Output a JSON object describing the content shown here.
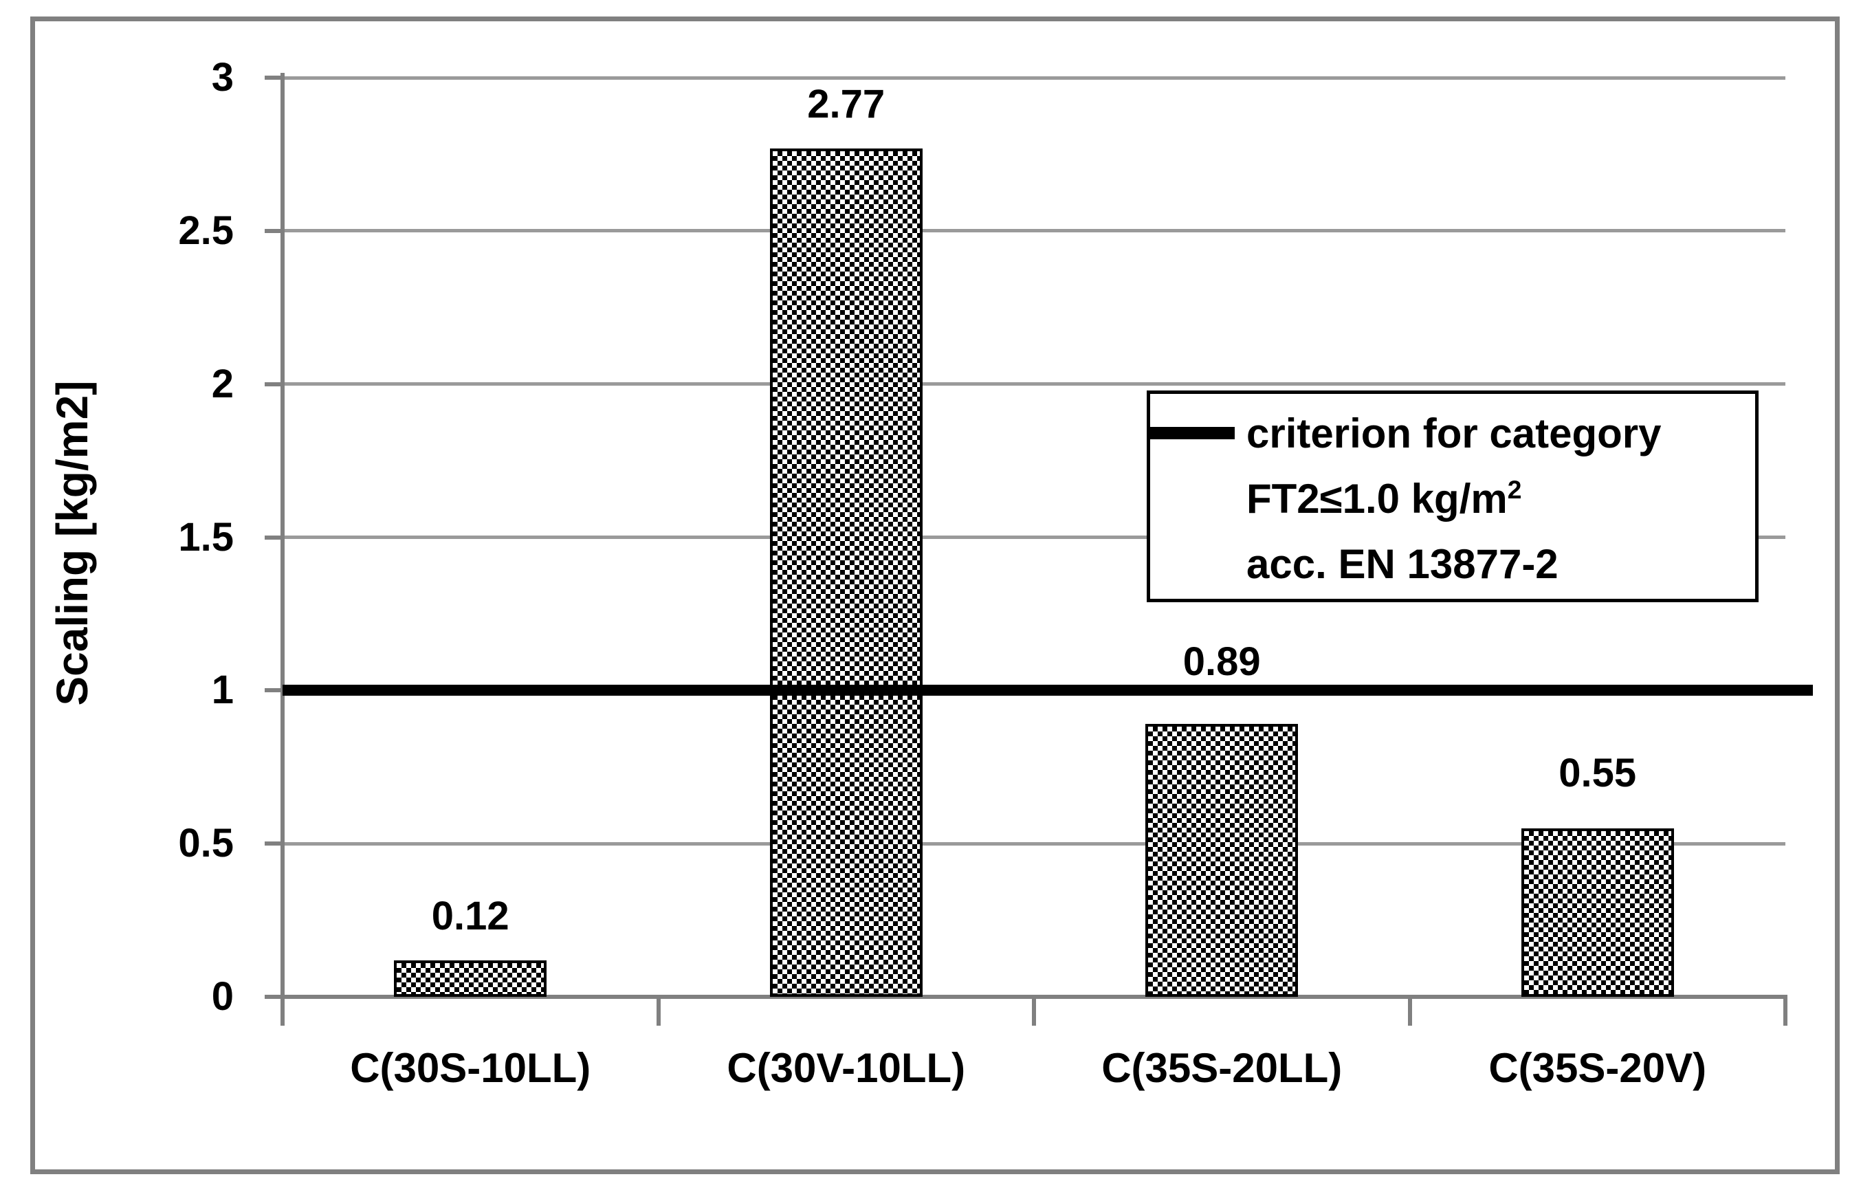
{
  "figure": {
    "background": "#ffffff",
    "border_color": "#808080"
  },
  "chart_data": {
    "type": "bar",
    "title": "",
    "categories": [
      "C(30S-10LL)",
      "C(30V-10LL)",
      "C(35S-20LL)",
      "C(35S-20V)"
    ],
    "values": [
      0.12,
      2.77,
      0.89,
      0.55
    ],
    "value_labels": [
      "0.12",
      "2.77",
      "0.89",
      "0.55"
    ],
    "ylabel": "Scaling [kg/m2]",
    "xlabel": "",
    "ylim": [
      0,
      3
    ],
    "ytick_interval": 0.5,
    "ytick_labels": [
      "0",
      "0.5",
      "1",
      "1.5",
      "2",
      "2.5",
      "3"
    ],
    "grid": "horizontal-on",
    "bar_pattern": "black-white-checker",
    "label_dy": [
      0,
      0,
      -26,
      -16
    ],
    "criterion_line": {
      "value": 1.0,
      "color": "#000000"
    },
    "legend": {
      "position": "right-middle-inside",
      "line1": "criterion for category",
      "line2_main": "FT2≤1.0 kg/m",
      "line2_sup": "2",
      "line3": "acc. EN 13877-2"
    }
  },
  "colors": {
    "grid_line": "#9a9a9a",
    "axis_line": "#808080",
    "bar_fill": "#000000",
    "bar_border": "#000000",
    "text": "#000000",
    "criterion": "#000000",
    "legend_border": "#000000"
  }
}
